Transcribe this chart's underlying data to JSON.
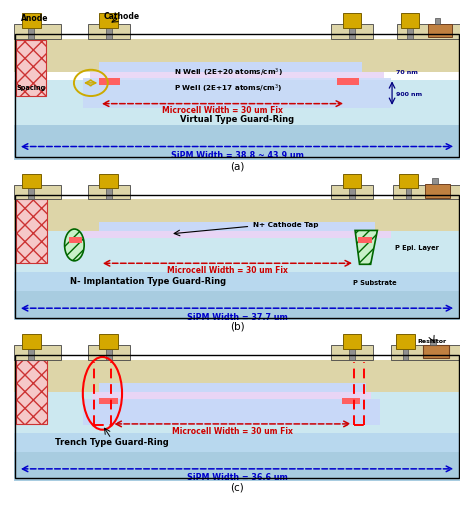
{
  "panels": [
    "(a)",
    "(b)",
    "(c)"
  ],
  "panel_labels": [
    "Virtual Type Guard-Ring",
    "N- Implantation Type Guard-Ring",
    "Trench Type Guard-Ring"
  ],
  "sipm_widths": [
    "SiPM Width = 38.8 ~ 43.9 um",
    "SiPM Width = 37.7 um",
    "SiPM Width = 36.6 um"
  ],
  "microcell_label": "Microcell Width = 30 um Fix",
  "col_oxide": "#ddd5a8",
  "col_nwell": "#e8d5f5",
  "col_pwell": "#c8d8f8",
  "col_bulk_top": "#cce8f0",
  "col_bulk_bot": "#a8cce0",
  "col_metal": "#d4a800",
  "col_poly": "#909090",
  "col_hatch_bg": "#f5c8c8",
  "col_hatch_edge": "#cc3333",
  "col_green_bg": "#c8f0c8",
  "col_green_edge": "#006600",
  "col_red_implant": "#ff6060",
  "col_border": "#000000",
  "col_sipm_arrow": "#0000cc",
  "col_microcell_arrow": "#cc0000",
  "col_dim_arrow": "#000080"
}
